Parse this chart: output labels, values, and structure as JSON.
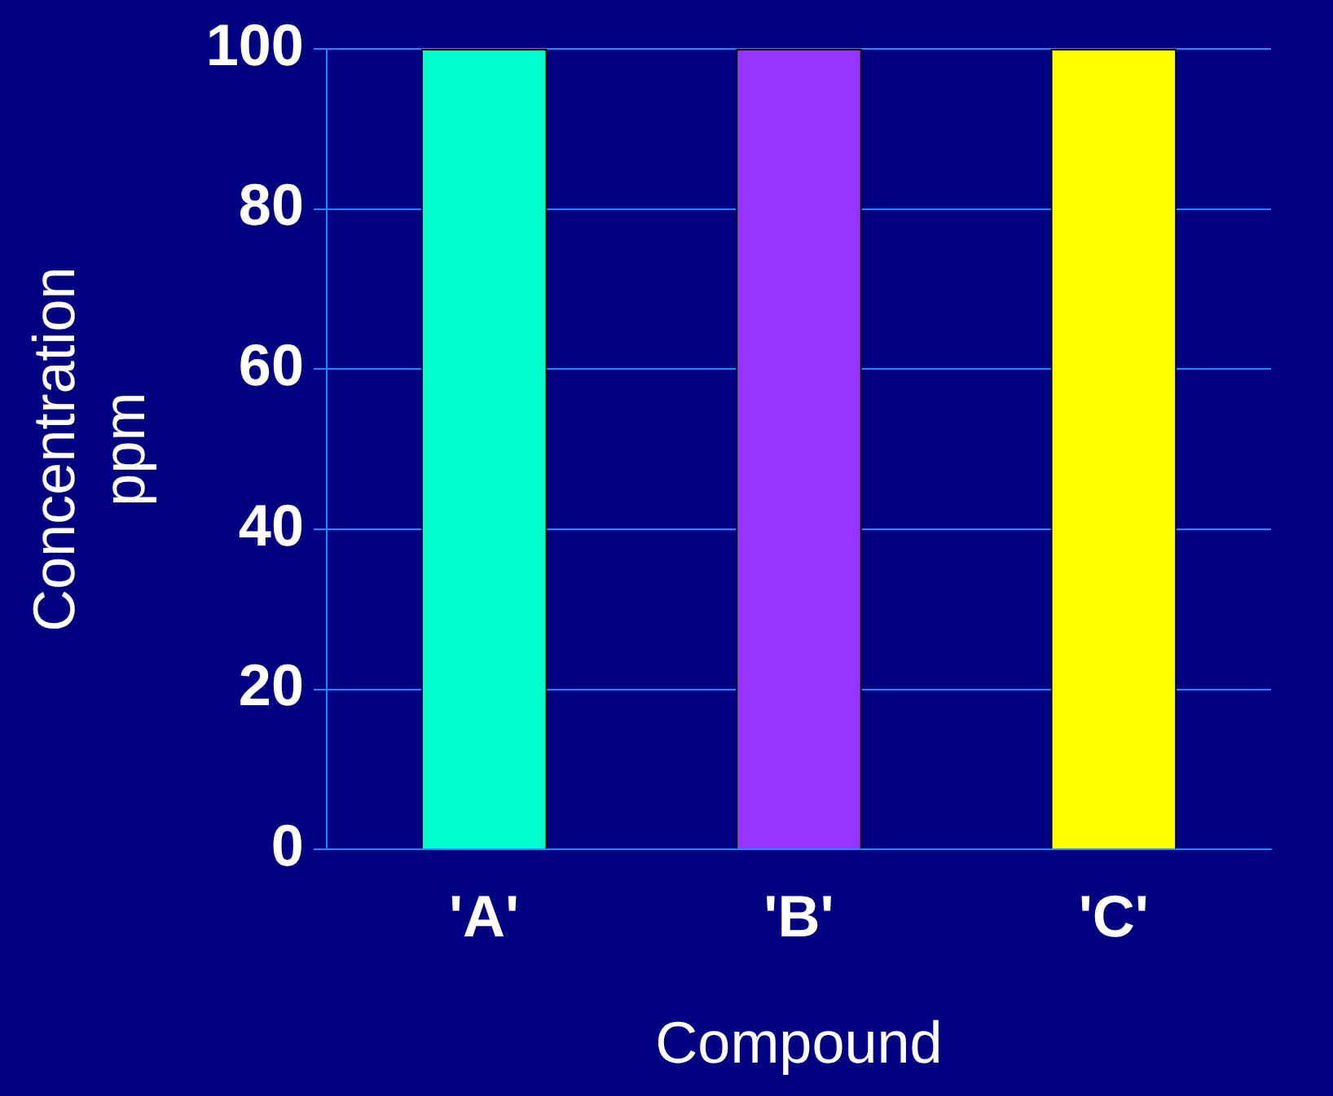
{
  "chart_data": {
    "type": "bar",
    "xlabel": "Compound",
    "ylabel": "Concentration ppm",
    "categories": [
      "'A'",
      "'B'",
      "'C'"
    ],
    "values": [
      100,
      100,
      100
    ],
    "colors": [
      "#00ffcc",
      "#9933ff",
      "#ffff00"
    ],
    "ylim": [
      0,
      100
    ],
    "yticks": [
      0,
      20,
      40,
      60,
      80,
      100
    ],
    "grid": "y"
  }
}
